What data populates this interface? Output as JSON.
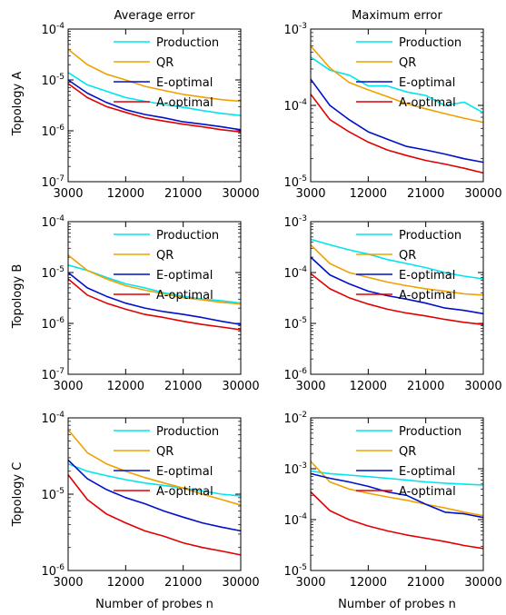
{
  "colors": {
    "Production": "#00e5ee",
    "QR": "#f0a000",
    "E-optimal": "#0010c8",
    "A-optimal": "#e00000"
  },
  "labels": {
    "col_titles": [
      "Average error",
      "Maximum error"
    ],
    "row_labels": [
      "Topology A",
      "Topology B",
      "Topology C"
    ],
    "xlabel": "Number of probes n"
  },
  "chart_data": [
    {
      "type": "line",
      "row": 0,
      "col": 0,
      "yscale": "log",
      "ylim_exp": [
        -7,
        -4
      ],
      "x": [
        3000,
        6000,
        9000,
        12000,
        15000,
        18000,
        21000,
        24000,
        27000,
        30000
      ],
      "xticks": [
        "3000",
        "12000",
        "21000",
        "30000"
      ],
      "series": [
        {
          "name": "Production",
          "values": [
            1.4e-05,
            8e-06,
            6e-06,
            4.5e-06,
            3.8e-06,
            3.3e-06,
            2.9e-06,
            2.5e-06,
            2.2e-06,
            2e-06
          ]
        },
        {
          "name": "QR",
          "values": [
            4e-05,
            2e-05,
            1.3e-05,
            1e-05,
            7.5e-06,
            6.2e-06,
            5.2e-06,
            4.6e-06,
            4.1e-06,
            3.8e-06
          ]
        },
        {
          "name": "E-optimal",
          "values": [
            1e-05,
            5.5e-06,
            3.6e-06,
            2.6e-06,
            2.1e-06,
            1.8e-06,
            1.5e-06,
            1.35e-06,
            1.2e-06,
            1.05e-06
          ]
        },
        {
          "name": "A-optimal",
          "values": [
            8.5e-06,
            4.5e-06,
            3e-06,
            2.3e-06,
            1.8e-06,
            1.55e-06,
            1.35e-06,
            1.2e-06,
            1.05e-06,
            9.5e-07
          ]
        }
      ]
    },
    {
      "type": "line",
      "row": 0,
      "col": 1,
      "yscale": "log",
      "ylim_exp": [
        -5,
        -3
      ],
      "x": [
        3000,
        6000,
        9000,
        12000,
        15000,
        18000,
        21000,
        24000,
        27000,
        30000
      ],
      "xticks": [
        "3000",
        "12000",
        "21000",
        "30000"
      ],
      "series": [
        {
          "name": "Production",
          "values": [
            0.00043,
            0.00029,
            0.00025,
            0.00018,
            0.00018,
            0.00015,
            0.000135,
            0.0001,
            0.00011,
            8e-05
          ]
        },
        {
          "name": "QR",
          "values": [
            0.0006,
            0.00031,
            0.0002,
            0.00016,
            0.00013,
            0.000105,
            9e-05,
            7.8e-05,
            6.8e-05,
            6e-05
          ]
        },
        {
          "name": "E-optimal",
          "values": [
            0.00022,
            0.0001,
            6.5e-05,
            4.5e-05,
            3.6e-05,
            2.9e-05,
            2.6e-05,
            2.3e-05,
            2e-05,
            1.8e-05
          ]
        },
        {
          "name": "A-optimal",
          "values": [
            0.00014,
            6.5e-05,
            4.5e-05,
            3.3e-05,
            2.6e-05,
            2.2e-05,
            1.9e-05,
            1.7e-05,
            1.5e-05,
            1.3e-05
          ]
        }
      ]
    },
    {
      "type": "line",
      "row": 1,
      "col": 0,
      "yscale": "log",
      "ylim_exp": [
        -7,
        -4
      ],
      "x": [
        3000,
        6000,
        9000,
        12000,
        15000,
        18000,
        21000,
        24000,
        27000,
        30000
      ],
      "xticks": [
        "3000",
        "12000",
        "21000",
        "30000"
      ],
      "series": [
        {
          "name": "Production",
          "values": [
            1.4e-05,
            1.1e-05,
            8e-06,
            6e-06,
            5e-06,
            4e-06,
            3.4e-06,
            3e-06,
            2.8e-06,
            2.5e-06
          ]
        },
        {
          "name": "QR",
          "values": [
            2.2e-05,
            1.1e-05,
            7.5e-06,
            5.5e-06,
            4.5e-06,
            3.8e-06,
            3.2e-06,
            2.9e-06,
            2.6e-06,
            2.4e-06
          ]
        },
        {
          "name": "E-optimal",
          "values": [
            1e-05,
            5e-06,
            3.4e-06,
            2.5e-06,
            2e-06,
            1.7e-06,
            1.5e-06,
            1.3e-06,
            1.1e-06,
            9.5e-07
          ]
        },
        {
          "name": "A-optimal",
          "values": [
            7.5e-06,
            3.6e-06,
            2.5e-06,
            1.9e-06,
            1.5e-06,
            1.3e-06,
            1.1e-06,
            9.5e-07,
            8.5e-07,
            7.5e-07
          ]
        }
      ]
    },
    {
      "type": "line",
      "row": 1,
      "col": 1,
      "yscale": "log",
      "ylim_exp": [
        -6,
        -3
      ],
      "x": [
        3000,
        6000,
        9000,
        12000,
        15000,
        18000,
        21000,
        24000,
        27000,
        30000
      ],
      "xticks": [
        "3000",
        "12000",
        "21000",
        "30000"
      ],
      "series": [
        {
          "name": "Production",
          "values": [
            0.00045,
            0.00035,
            0.00028,
            0.00023,
            0.00018,
            0.00015,
            0.000125,
            0.0001,
            8.5e-05,
            7.5e-05
          ]
        },
        {
          "name": "QR",
          "values": [
            0.00035,
            0.00015,
            0.0001,
            8e-05,
            6.5e-05,
            5.5e-05,
            4.8e-05,
            4.3e-05,
            3.8e-05,
            3.6e-05
          ]
        },
        {
          "name": "E-optimal",
          "values": [
            0.0002,
            9e-05,
            6e-05,
            4.3e-05,
            3.5e-05,
            3e-05,
            2.5e-05,
            2e-05,
            1.8e-05,
            1.55e-05
          ]
        },
        {
          "name": "A-optimal",
          "values": [
            9.5e-05,
            4.8e-05,
            3.2e-05,
            2.4e-05,
            1.9e-05,
            1.6e-05,
            1.4e-05,
            1.2e-05,
            1.05e-05,
            9.5e-06
          ]
        }
      ]
    },
    {
      "type": "line",
      "row": 2,
      "col": 0,
      "yscale": "log",
      "ylim_exp": [
        -6,
        -4
      ],
      "x": [
        3000,
        6000,
        9000,
        12000,
        15000,
        18000,
        21000,
        24000,
        27000,
        30000
      ],
      "xticks": [
        "3000",
        "12000",
        "21000",
        "30000"
      ],
      "series": [
        {
          "name": "Production",
          "values": [
            2.5e-05,
            2e-05,
            1.75e-05,
            1.55e-05,
            1.4e-05,
            1.3e-05,
            1.2e-05,
            1.1e-05,
            1e-05,
            9.5e-06
          ]
        },
        {
          "name": "QR",
          "values": [
            7e-05,
            3.5e-05,
            2.5e-05,
            2e-05,
            1.65e-05,
            1.4e-05,
            1.2e-05,
            1e-05,
            8.5e-06,
            7.2e-06
          ]
        },
        {
          "name": "E-optimal",
          "values": [
            2.8e-05,
            1.6e-05,
            1.15e-05,
            9e-06,
            7.5e-06,
            6e-06,
            5e-06,
            4.2e-06,
            3.7e-06,
            3.3e-06
          ]
        },
        {
          "name": "A-optimal",
          "values": [
            1.8e-05,
            8.5e-06,
            5.5e-06,
            4.2e-06,
            3.3e-06,
            2.8e-06,
            2.3e-06,
            2e-06,
            1.8e-06,
            1.6e-06
          ]
        }
      ]
    },
    {
      "type": "line",
      "row": 2,
      "col": 1,
      "yscale": "log",
      "ylim_exp": [
        -5,
        -2
      ],
      "x": [
        3000,
        6000,
        9000,
        12000,
        15000,
        18000,
        21000,
        24000,
        27000,
        30000
      ],
      "xticks": [
        "3000",
        "12000",
        "21000",
        "30000"
      ],
      "series": [
        {
          "name": "Production",
          "values": [
            0.0009,
            0.0008,
            0.00075,
            0.0007,
            0.00065,
            0.0006,
            0.00055,
            0.00052,
            0.0005,
            0.00048
          ]
        },
        {
          "name": "QR",
          "values": [
            0.0014,
            0.00055,
            0.0004,
            0.00033,
            0.00028,
            0.00024,
            0.0002,
            0.00017,
            0.00014,
            0.00012
          ]
        },
        {
          "name": "E-optimal",
          "values": [
            0.0008,
            0.00065,
            0.00055,
            0.00045,
            0.00035,
            0.0003,
            0.0002,
            0.00014,
            0.00013,
            0.00011
          ]
        },
        {
          "name": "A-optimal",
          "values": [
            0.00035,
            0.00015,
            0.0001,
            7.5e-05,
            6e-05,
            5e-05,
            4.3e-05,
            3.7e-05,
            3.1e-05,
            2.7e-05
          ]
        }
      ]
    }
  ]
}
